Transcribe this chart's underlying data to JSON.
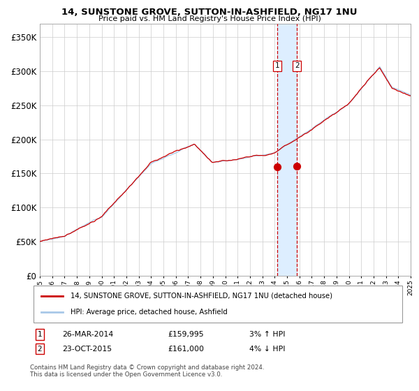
{
  "title_line1": "14, SUNSTONE GROVE, SUTTON-IN-ASHFIELD, NG17 1NU",
  "title_line2": "Price paid vs. HM Land Registry's House Price Index (HPI)",
  "legend_line1": "14, SUNSTONE GROVE, SUTTON-IN-ASHFIELD, NG17 1NU (detached house)",
  "legend_line2": "HPI: Average price, detached house, Ashfield",
  "transaction1": {
    "label": "1",
    "date": "26-MAR-2014",
    "price": 159995,
    "hpi_change": "3% ↑ HPI"
  },
  "transaction2": {
    "label": "2",
    "date": "23-OCT-2015",
    "price": 161000,
    "hpi_change": "4% ↓ HPI"
  },
  "footnote": "Contains HM Land Registry data © Crown copyright and database right 2024.\nThis data is licensed under the Open Government Licence v3.0.",
  "red_color": "#cc0000",
  "blue_color": "#a8c8e8",
  "highlight_color": "#ddeeff",
  "dashed_color": "#cc0000",
  "ylim": [
    0,
    370000
  ],
  "yticks": [
    0,
    50000,
    100000,
    150000,
    200000,
    250000,
    300000,
    350000
  ],
  "start_year": 1995,
  "end_year": 2025,
  "t1_year": 2014.22,
  "t2_year": 2015.8,
  "price1": 159995,
  "price2": 161000
}
